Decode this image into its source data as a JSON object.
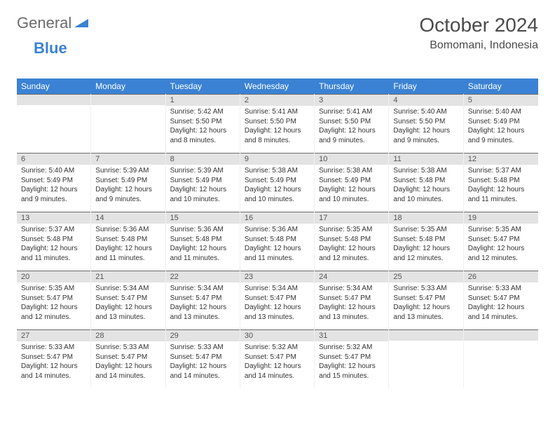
{
  "logo": {
    "text1": "General",
    "text2": "Blue"
  },
  "title": "October 2024",
  "location": "Bomomani, Indonesia",
  "weekdays": [
    "Sunday",
    "Monday",
    "Tuesday",
    "Wednesday",
    "Thursday",
    "Friday",
    "Saturday"
  ],
  "colors": {
    "header_bg": "#3b82d4",
    "daynum_bg": "#e3e3e3",
    "daynum_border": "#6b6b6b",
    "text": "#333333"
  },
  "weeks": [
    [
      {
        "n": "",
        "sr": "",
        "ss": "",
        "dl": ""
      },
      {
        "n": "",
        "sr": "",
        "ss": "",
        "dl": ""
      },
      {
        "n": "1",
        "sr": "Sunrise: 5:42 AM",
        "ss": "Sunset: 5:50 PM",
        "dl": "Daylight: 12 hours and 8 minutes."
      },
      {
        "n": "2",
        "sr": "Sunrise: 5:41 AM",
        "ss": "Sunset: 5:50 PM",
        "dl": "Daylight: 12 hours and 8 minutes."
      },
      {
        "n": "3",
        "sr": "Sunrise: 5:41 AM",
        "ss": "Sunset: 5:50 PM",
        "dl": "Daylight: 12 hours and 9 minutes."
      },
      {
        "n": "4",
        "sr": "Sunrise: 5:40 AM",
        "ss": "Sunset: 5:50 PM",
        "dl": "Daylight: 12 hours and 9 minutes."
      },
      {
        "n": "5",
        "sr": "Sunrise: 5:40 AM",
        "ss": "Sunset: 5:49 PM",
        "dl": "Daylight: 12 hours and 9 minutes."
      }
    ],
    [
      {
        "n": "6",
        "sr": "Sunrise: 5:40 AM",
        "ss": "Sunset: 5:49 PM",
        "dl": "Daylight: 12 hours and 9 minutes."
      },
      {
        "n": "7",
        "sr": "Sunrise: 5:39 AM",
        "ss": "Sunset: 5:49 PM",
        "dl": "Daylight: 12 hours and 9 minutes."
      },
      {
        "n": "8",
        "sr": "Sunrise: 5:39 AM",
        "ss": "Sunset: 5:49 PM",
        "dl": "Daylight: 12 hours and 10 minutes."
      },
      {
        "n": "9",
        "sr": "Sunrise: 5:38 AM",
        "ss": "Sunset: 5:49 PM",
        "dl": "Daylight: 12 hours and 10 minutes."
      },
      {
        "n": "10",
        "sr": "Sunrise: 5:38 AM",
        "ss": "Sunset: 5:49 PM",
        "dl": "Daylight: 12 hours and 10 minutes."
      },
      {
        "n": "11",
        "sr": "Sunrise: 5:38 AM",
        "ss": "Sunset: 5:48 PM",
        "dl": "Daylight: 12 hours and 10 minutes."
      },
      {
        "n": "12",
        "sr": "Sunrise: 5:37 AM",
        "ss": "Sunset: 5:48 PM",
        "dl": "Daylight: 12 hours and 11 minutes."
      }
    ],
    [
      {
        "n": "13",
        "sr": "Sunrise: 5:37 AM",
        "ss": "Sunset: 5:48 PM",
        "dl": "Daylight: 12 hours and 11 minutes."
      },
      {
        "n": "14",
        "sr": "Sunrise: 5:36 AM",
        "ss": "Sunset: 5:48 PM",
        "dl": "Daylight: 12 hours and 11 minutes."
      },
      {
        "n": "15",
        "sr": "Sunrise: 5:36 AM",
        "ss": "Sunset: 5:48 PM",
        "dl": "Daylight: 12 hours and 11 minutes."
      },
      {
        "n": "16",
        "sr": "Sunrise: 5:36 AM",
        "ss": "Sunset: 5:48 PM",
        "dl": "Daylight: 12 hours and 11 minutes."
      },
      {
        "n": "17",
        "sr": "Sunrise: 5:35 AM",
        "ss": "Sunset: 5:48 PM",
        "dl": "Daylight: 12 hours and 12 minutes."
      },
      {
        "n": "18",
        "sr": "Sunrise: 5:35 AM",
        "ss": "Sunset: 5:48 PM",
        "dl": "Daylight: 12 hours and 12 minutes."
      },
      {
        "n": "19",
        "sr": "Sunrise: 5:35 AM",
        "ss": "Sunset: 5:47 PM",
        "dl": "Daylight: 12 hours and 12 minutes."
      }
    ],
    [
      {
        "n": "20",
        "sr": "Sunrise: 5:35 AM",
        "ss": "Sunset: 5:47 PM",
        "dl": "Daylight: 12 hours and 12 minutes."
      },
      {
        "n": "21",
        "sr": "Sunrise: 5:34 AM",
        "ss": "Sunset: 5:47 PM",
        "dl": "Daylight: 12 hours and 13 minutes."
      },
      {
        "n": "22",
        "sr": "Sunrise: 5:34 AM",
        "ss": "Sunset: 5:47 PM",
        "dl": "Daylight: 12 hours and 13 minutes."
      },
      {
        "n": "23",
        "sr": "Sunrise: 5:34 AM",
        "ss": "Sunset: 5:47 PM",
        "dl": "Daylight: 12 hours and 13 minutes."
      },
      {
        "n": "24",
        "sr": "Sunrise: 5:34 AM",
        "ss": "Sunset: 5:47 PM",
        "dl": "Daylight: 12 hours and 13 minutes."
      },
      {
        "n": "25",
        "sr": "Sunrise: 5:33 AM",
        "ss": "Sunset: 5:47 PM",
        "dl": "Daylight: 12 hours and 13 minutes."
      },
      {
        "n": "26",
        "sr": "Sunrise: 5:33 AM",
        "ss": "Sunset: 5:47 PM",
        "dl": "Daylight: 12 hours and 14 minutes."
      }
    ],
    [
      {
        "n": "27",
        "sr": "Sunrise: 5:33 AM",
        "ss": "Sunset: 5:47 PM",
        "dl": "Daylight: 12 hours and 14 minutes."
      },
      {
        "n": "28",
        "sr": "Sunrise: 5:33 AM",
        "ss": "Sunset: 5:47 PM",
        "dl": "Daylight: 12 hours and 14 minutes."
      },
      {
        "n": "29",
        "sr": "Sunrise: 5:33 AM",
        "ss": "Sunset: 5:47 PM",
        "dl": "Daylight: 12 hours and 14 minutes."
      },
      {
        "n": "30",
        "sr": "Sunrise: 5:32 AM",
        "ss": "Sunset: 5:47 PM",
        "dl": "Daylight: 12 hours and 14 minutes."
      },
      {
        "n": "31",
        "sr": "Sunrise: 5:32 AM",
        "ss": "Sunset: 5:47 PM",
        "dl": "Daylight: 12 hours and 15 minutes."
      },
      {
        "n": "",
        "sr": "",
        "ss": "",
        "dl": ""
      },
      {
        "n": "",
        "sr": "",
        "ss": "",
        "dl": ""
      }
    ]
  ]
}
